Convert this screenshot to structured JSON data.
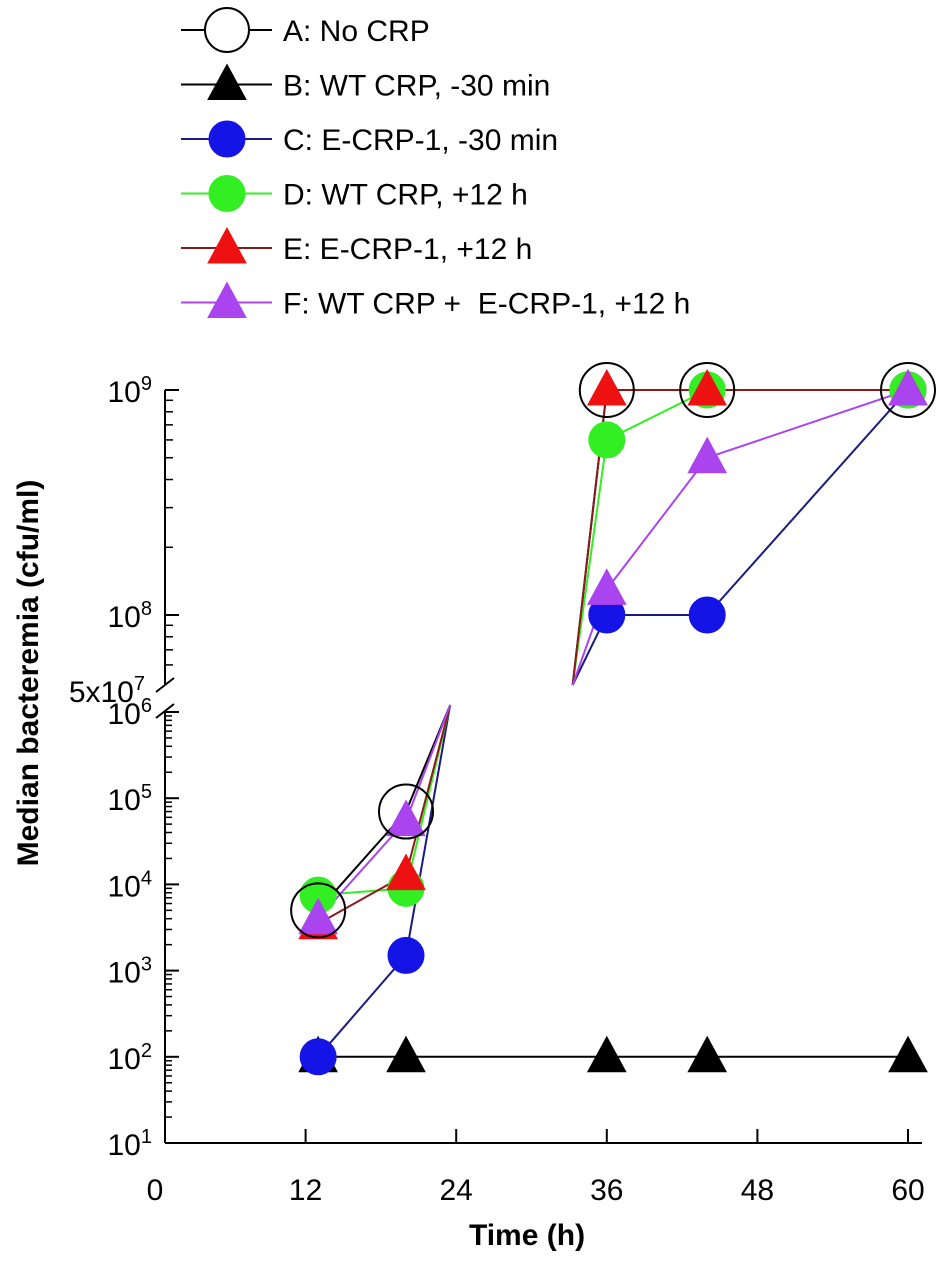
{
  "chart_data": {
    "type": "line",
    "xlabel": "Time (h)",
    "ylabel": "Median bacteremia (cfu/ml)",
    "y_scale": "log (broken axis)",
    "xlim": [
      0,
      60
    ],
    "x_ticks": [
      "0",
      "12",
      "24",
      "36",
      "48",
      "60"
    ],
    "y_ticks_lower": [
      "10",
      "10",
      "10",
      "10",
      "10",
      "10"
    ],
    "y_ticks_lower_exp": [
      "1",
      "2",
      "3",
      "4",
      "5",
      "6"
    ],
    "y_ticks_upper": [
      "10",
      "10"
    ],
    "y_ticks_upper_exp": [
      "8",
      "9"
    ],
    "y_break_label": "5x10",
    "y_break_label_exp": "7",
    "series": [
      {
        "id": "A",
        "name": "A: No CRP",
        "marker": "open-circle",
        "color": "#000000",
        "points": [
          [
            13,
            5000
          ],
          [
            20,
            70000
          ],
          [
            36,
            1000000000
          ],
          [
            44,
            1000000000
          ],
          [
            60,
            1000000000
          ]
        ]
      },
      {
        "id": "B",
        "name": "B: WT CRP, -30 min",
        "marker": "triangle",
        "color": "#000000",
        "points": [
          [
            13,
            100
          ],
          [
            20,
            100
          ],
          [
            36,
            100
          ],
          [
            44,
            100
          ],
          [
            60,
            100
          ]
        ]
      },
      {
        "id": "C",
        "name": "C: E-CRP-1, -30 min",
        "marker": "circle",
        "color": "#1414e6",
        "line_color": "#1a1a80",
        "points": [
          [
            13,
            100
          ],
          [
            20,
            1500
          ],
          [
            36,
            100000000
          ],
          [
            44,
            100000000
          ],
          [
            60,
            1000000000
          ]
        ]
      },
      {
        "id": "D",
        "name": "D: WT CRP, +12 h",
        "marker": "circle",
        "color": "#33ee22",
        "points": [
          [
            13,
            7500
          ],
          [
            20,
            9000
          ],
          [
            36,
            600000000
          ],
          [
            44,
            1000000000
          ],
          [
            60,
            1000000000
          ]
        ]
      },
      {
        "id": "E",
        "name": "E: E-CRP-1, +12 h",
        "marker": "triangle",
        "color": "#ee1111",
        "line_color": "#8b1a1a",
        "points": [
          [
            13,
            3500
          ],
          [
            20,
            13000
          ],
          [
            36,
            1000000000
          ],
          [
            44,
            1000000000
          ],
          [
            60,
            1000000000
          ]
        ]
      },
      {
        "id": "F",
        "name": "F: WT CRP +  E-CRP-1, +12 h",
        "marker": "triangle",
        "color": "#aa44ee",
        "points": [
          [
            13,
            4000
          ],
          [
            20,
            55000
          ],
          [
            36,
            130000000
          ],
          [
            44,
            500000000
          ],
          [
            60,
            1000000000
          ]
        ]
      }
    ]
  }
}
